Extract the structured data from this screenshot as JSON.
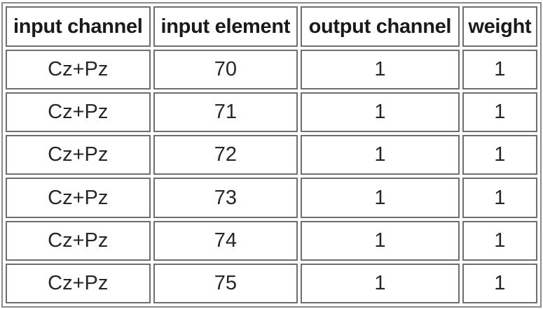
{
  "table": {
    "headers": [
      "input channel",
      "input element",
      "output channel",
      "weight"
    ],
    "rows": [
      [
        "Cz+Pz",
        "70",
        "1",
        "1"
      ],
      [
        "Cz+Pz",
        "71",
        "1",
        "1"
      ],
      [
        "Cz+Pz",
        "72",
        "1",
        "1"
      ],
      [
        "Cz+Pz",
        "73",
        "1",
        "1"
      ],
      [
        "Cz+Pz",
        "74",
        "1",
        "1"
      ],
      [
        "Cz+Pz",
        "75",
        "1",
        "1"
      ]
    ]
  }
}
